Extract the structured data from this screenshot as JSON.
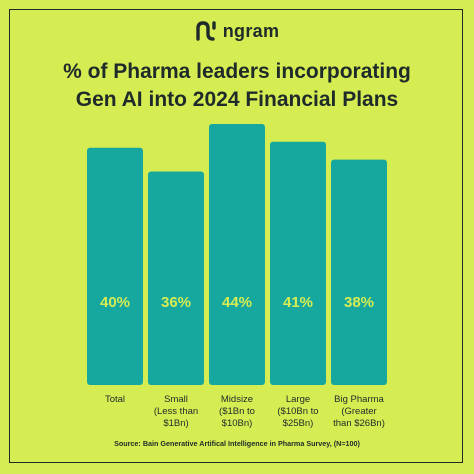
{
  "brand": {
    "name": "ngram",
    "logo_icon": "ngram-logo-icon"
  },
  "title_lines": [
    "% of Pharma leaders incorporating",
    "Gen AI into 2024 Financial Plans"
  ],
  "source": "Source: Bain Generative Artifical Intelligence in Pharma Survey, (N=100)",
  "colors": {
    "background": "#d6ec53",
    "bar": "#16a89e",
    "label": "#d6ec53",
    "text": "#1f2a2a"
  },
  "chart_data": {
    "type": "bar",
    "categories": [
      [
        "Total"
      ],
      [
        "Small",
        "(Less than",
        "$1Bn)"
      ],
      [
        "Midsize",
        "($1Bn to",
        "$10Bn)"
      ],
      [
        "Large",
        "($10Bn to",
        "$25Bn)"
      ],
      [
        "Big Pharma",
        "(Greater",
        "than $26Bn)"
      ]
    ],
    "values": [
      40,
      36,
      44,
      41,
      38
    ],
    "value_labels": [
      "40%",
      "36%",
      "44%",
      "41%",
      "38%"
    ],
    "title": "% of Pharma leaders incorporating Gen AI into 2024 Financial Plans",
    "xlabel": "",
    "ylabel": "",
    "ylim": [
      0,
      44
    ],
    "grid": false,
    "legend": "none"
  }
}
